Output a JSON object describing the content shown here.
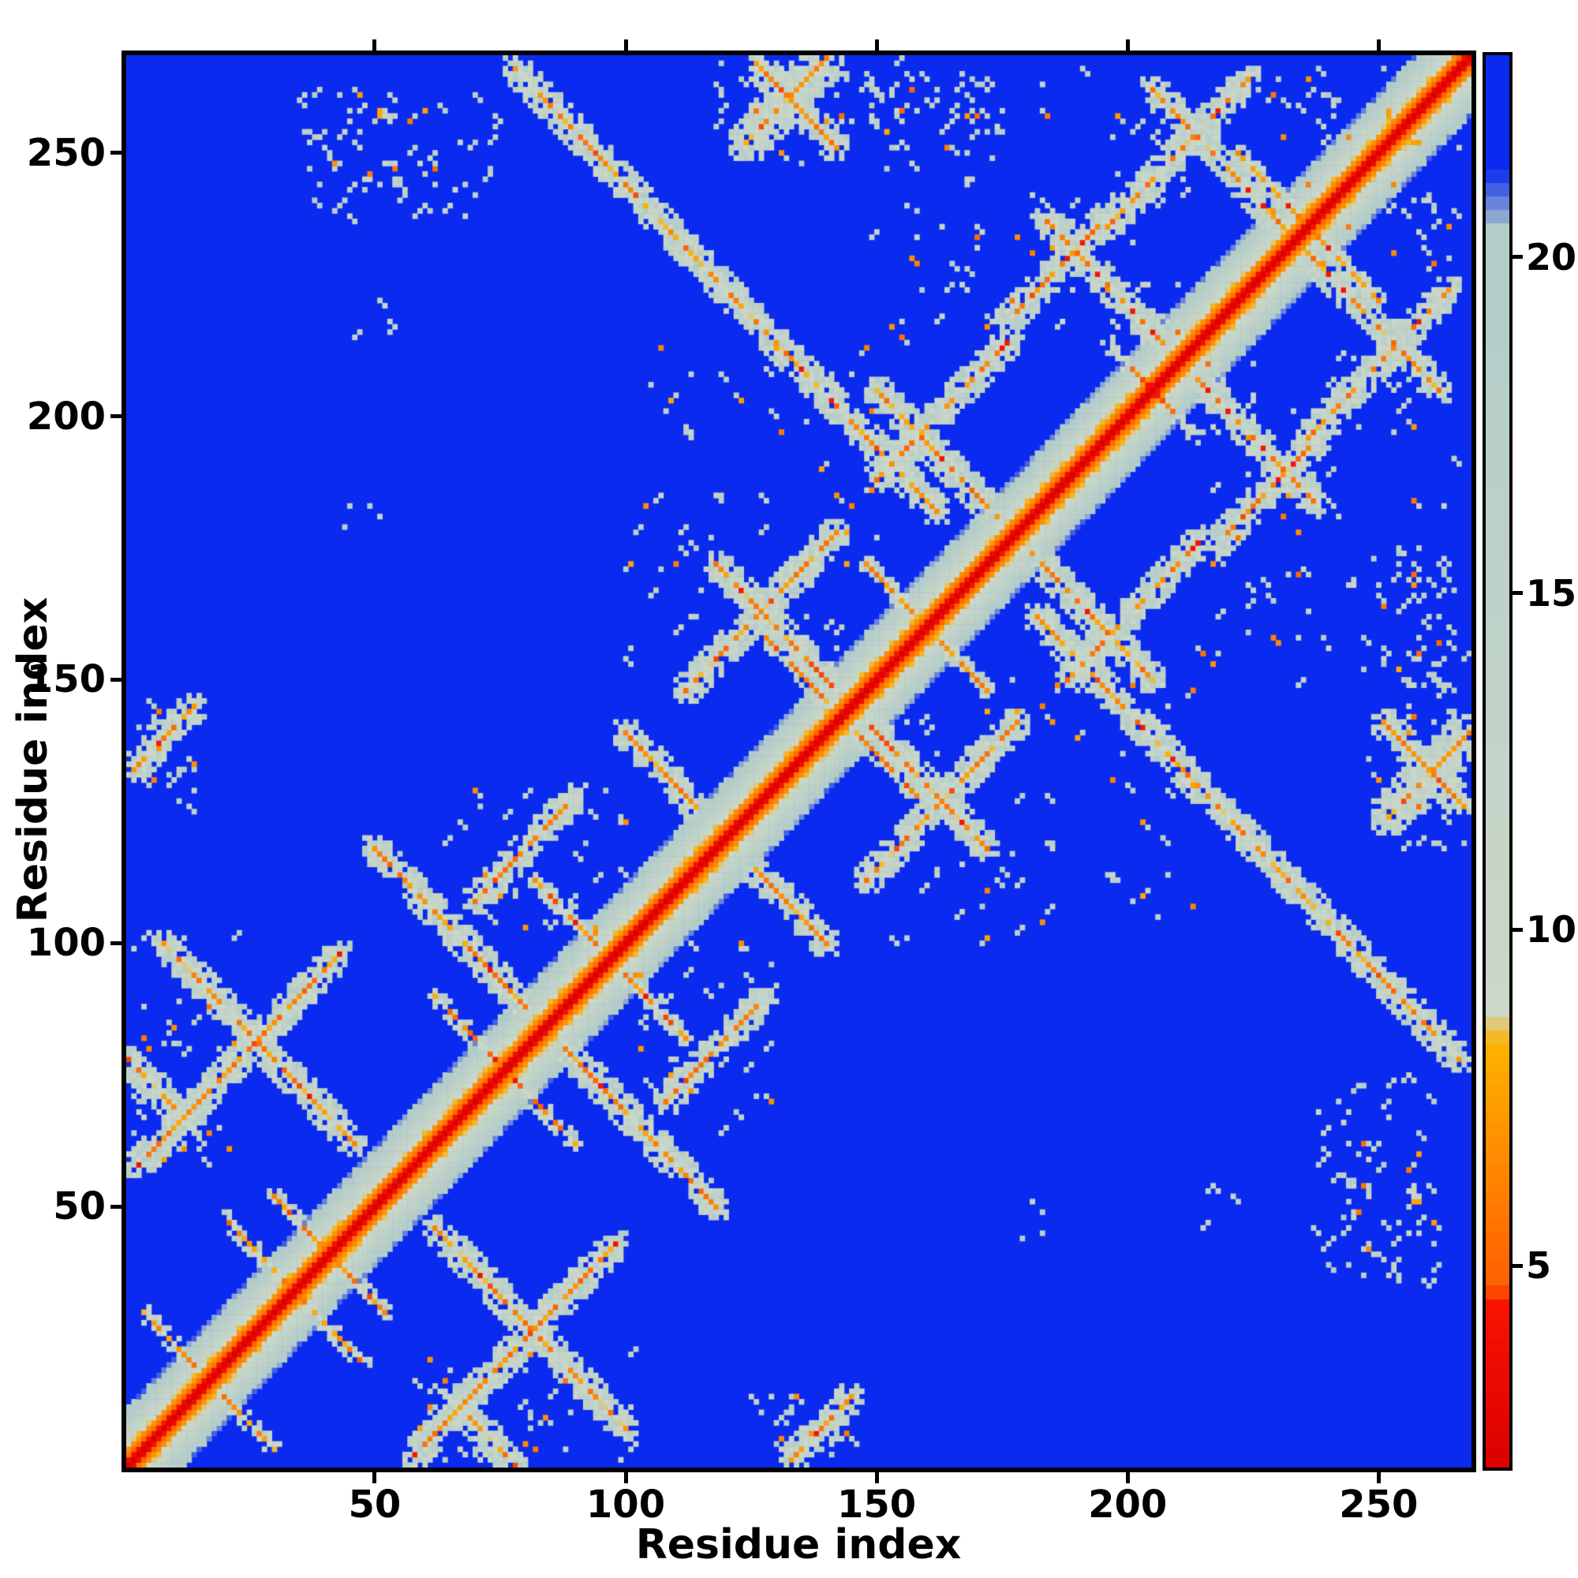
{
  "colors": {
    "background": "#ffffff",
    "frame": "#000000",
    "map_background_blue": "#0b2af0",
    "contact_pale": "#ccd8c8",
    "contact_orange": "#ffb200",
    "diagonal_red": "#dc0000"
  },
  "chart_data": {
    "type": "heatmap",
    "title": "",
    "xlabel": "Residue index",
    "ylabel": "Residue index",
    "x_range": [
      1,
      268
    ],
    "y_range": [
      1,
      268
    ],
    "x_ticks": [
      50,
      100,
      150,
      200,
      250
    ],
    "y_ticks": [
      50,
      100,
      150,
      200,
      250
    ],
    "grid": false,
    "legend": "none",
    "colorbar": {
      "position": "right",
      "orientation": "vertical",
      "ticks": [
        5,
        10,
        15,
        20
      ],
      "vmin": 2,
      "vmax": 23
    },
    "colormap_stops": [
      [
        2,
        "#dc0000"
      ],
      [
        4.4,
        "#f81400"
      ],
      [
        4.7,
        "#ff6000"
      ],
      [
        8.3,
        "#ffb200"
      ],
      [
        8.8,
        "#ccd8c8"
      ],
      [
        20.4,
        "#b2ccca"
      ],
      [
        21.3,
        "#0b2af0"
      ],
      [
        23,
        "#0b2af0"
      ]
    ],
    "data_note": "Symmetric protein residue-residue distance map (~268 residues). Red = on-diagonal/sequence-adjacent pairs, orange = close tertiary contacts, pale sage = mid-range distances, blue = far apart. Dense 268x268 matrix is approximated procedurally from the visible contact features listed in matrix_generator (diagonal band profile, parallel/antiparallel contact segments, sparse speckle clusters).",
    "matrix_generator": {
      "n": 268,
      "seed": 7,
      "background_value": 23,
      "core_density": 0.88,
      "halo_density": 0.5,
      "core_value_range": [
        4.2,
        9.4
      ],
      "halo_value_range": [
        9.0,
        19.5
      ],
      "diagonal_profile": [
        0,
        3.8,
        5.3,
        6.9,
        8.8,
        10.6,
        12.4,
        14.2,
        16.0,
        17.8,
        19.4,
        20.6
      ],
      "segments": [
        {
          "a0": 3,
          "b0": 58,
          "len": 40,
          "dir": 1,
          "w": 2
        },
        {
          "a0": 8,
          "b0": 100,
          "len": 38,
          "dir": -1,
          "w": 2
        },
        {
          "a0": 1,
          "b0": 78,
          "len": 12,
          "dir": -1,
          "w": 2
        },
        {
          "a0": 20,
          "b0": 48,
          "len": 12,
          "dir": -1,
          "w": 1
        },
        {
          "a0": 4,
          "b0": 30,
          "len": 10,
          "dir": -1,
          "w": 1
        },
        {
          "a0": 30,
          "b0": 52,
          "len": 9,
          "dir": -1,
          "w": 1
        },
        {
          "a0": 50,
          "b0": 118,
          "len": 30,
          "dir": -1,
          "w": 2
        },
        {
          "a0": 62,
          "b0": 90,
          "len": 12,
          "dir": -1,
          "w": 1
        },
        {
          "a0": 70,
          "b0": 108,
          "len": 20,
          "dir": 1,
          "w": 2
        },
        {
          "a0": 82,
          "b0": 112,
          "len": 12,
          "dir": -1,
          "w": 1
        },
        {
          "a0": 2,
          "b0": 133,
          "len": 12,
          "dir": 1,
          "w": 2
        },
        {
          "a0": 78,
          "b0": 266,
          "len": 84,
          "dir": -1,
          "w": 2
        },
        {
          "a0": 100,
          "b0": 140,
          "len": 14,
          "dir": -1,
          "w": 2
        },
        {
          "a0": 112,
          "b0": 148,
          "len": 30,
          "dir": 1,
          "w": 2
        },
        {
          "a0": 118,
          "b0": 172,
          "len": 24,
          "dir": -1,
          "w": 2
        },
        {
          "a0": 128,
          "b0": 158,
          "len": 12,
          "dir": -1,
          "w": 1
        },
        {
          "a0": 148,
          "b0": 172,
          "len": 10,
          "dir": -1,
          "w": 1
        },
        {
          "a0": 150,
          "b0": 205,
          "len": 24,
          "dir": -1,
          "w": 2
        },
        {
          "a0": 150,
          "b0": 188,
          "len": 26,
          "dir": 1,
          "w": 2
        },
        {
          "a0": 176,
          "b0": 218,
          "len": 20,
          "dir": 1,
          "w": 2
        },
        {
          "a0": 183,
          "b0": 238,
          "len": 24,
          "dir": -1,
          "w": 2
        },
        {
          "a0": 196,
          "b0": 214,
          "len": 8,
          "dir": -1,
          "w": 1
        },
        {
          "a0": 196,
          "b0": 236,
          "len": 28,
          "dir": 1,
          "w": 2
        },
        {
          "a0": 205,
          "b0": 262,
          "len": 26,
          "dir": -1,
          "w": 2
        },
        {
          "a0": 222,
          "b0": 250,
          "len": 12,
          "dir": -1,
          "w": 1
        },
        {
          "a0": 124,
          "b0": 252,
          "len": 16,
          "dir": 1,
          "w": 3
        },
        {
          "a0": 126,
          "b0": 267,
          "len": 16,
          "dir": -1,
          "w": 2
        }
      ],
      "sparse_clusters": [
        {
          "a": [
            35,
            75
          ],
          "b": [
            238,
            262
          ],
          "count": 70
        },
        {
          "a": [
            2,
            22
          ],
          "b": [
            58,
            102
          ],
          "count": 45
        },
        {
          "a": [
            60,
            100
          ],
          "b": [
            96,
            130
          ],
          "count": 40
        },
        {
          "a": [
            1,
            14
          ],
          "b": [
            126,
            150
          ],
          "count": 25
        },
        {
          "a": [
            100,
            150
          ],
          "b": [
            150,
            215
          ],
          "count": 70
        },
        {
          "a": [
            150,
            212
          ],
          "b": [
            214,
            266
          ],
          "count": 90
        },
        {
          "a": [
            118,
            175
          ],
          "b": [
            248,
            267
          ],
          "count": 60
        },
        {
          "a": [
            228,
            262
          ],
          "b": [
            236,
            266
          ],
          "count": 30
        },
        {
          "a": [
            44,
            52
          ],
          "b": [
            172,
            184
          ],
          "count": 4
        },
        {
          "a": [
            46,
            54
          ],
          "b": [
            214,
            224
          ],
          "count": 4
        }
      ]
    }
  }
}
